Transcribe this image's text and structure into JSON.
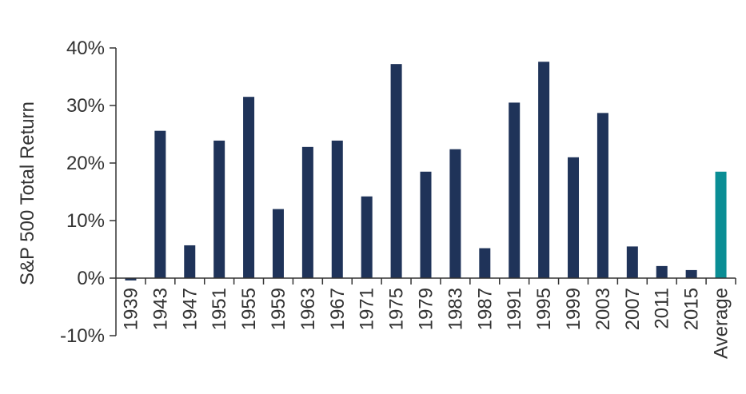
{
  "chart_data": {
    "type": "bar",
    "ylabel": "S&P 500 Total Return",
    "xlabel": "",
    "ylim": [
      -10,
      40
    ],
    "ytick_values": [
      -10,
      0,
      10,
      20,
      30,
      40
    ],
    "ytick_labels": [
      "-10%",
      "0%",
      "10%",
      "20%",
      "30%",
      "40%"
    ],
    "categories": [
      "1939",
      "1943",
      "1947",
      "1951",
      "1955",
      "1959",
      "1963",
      "1967",
      "1971",
      "1975",
      "1979",
      "1983",
      "1987",
      "1991",
      "1995",
      "1999",
      "2003",
      "2007",
      "2011",
      "2015",
      "Average"
    ],
    "values": [
      -0.4,
      25.6,
      5.7,
      23.9,
      31.5,
      12.0,
      22.8,
      23.9,
      14.2,
      37.2,
      18.5,
      22.4,
      5.2,
      30.5,
      37.6,
      21.0,
      28.7,
      5.5,
      2.1,
      1.4,
      18.5
    ],
    "bar_color": "#1f3359",
    "highlight_color": "#0a8e95",
    "highlight_category": "Average",
    "grid": false,
    "legend": "none"
  }
}
